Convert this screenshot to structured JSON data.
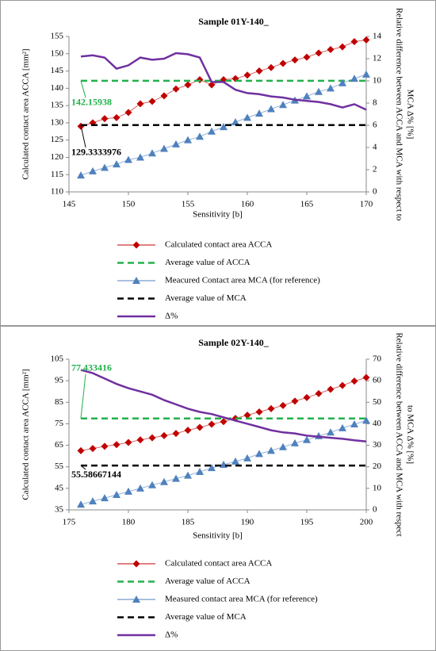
{
  "chart_data": [
    {
      "type": "line",
      "title": "Sample 01Y-140_",
      "xlabel": "Sensitivity [b]",
      "ylabel": "Calculated contact area ACCA [mm²]",
      "y2label": [
        "Relative difference between ACCA and MCA with respect to",
        "MCA Δ% [%]"
      ],
      "x": [
        146,
        147,
        148,
        149,
        150,
        151,
        152,
        153,
        154,
        155,
        156,
        157,
        158,
        159,
        160,
        161,
        162,
        163,
        164,
        165,
        166,
        167,
        168,
        169,
        170
      ],
      "xlim": [
        145,
        170
      ],
      "xticks": [
        145,
        150,
        155,
        160,
        165,
        170
      ],
      "ylim": [
        110,
        155
      ],
      "yticks": [
        110,
        115,
        120,
        125,
        130,
        135,
        140,
        145,
        150,
        155
      ],
      "y2lim": [
        0,
        14
      ],
      "y2ticks": [
        0,
        2,
        4,
        6,
        8,
        10,
        12,
        14
      ],
      "series": [
        {
          "name": "Calculated contact area ACCA",
          "color": "#c00000",
          "marker": "diamond",
          "dash": false,
          "values": [
            129,
            130,
            131.2,
            131.5,
            133,
            135.5,
            136.2,
            137.8,
            139.8,
            141,
            142.5,
            141,
            142.5,
            142.8,
            143.8,
            145,
            146,
            147.2,
            148.2,
            149,
            150.2,
            151.2,
            152,
            153.5,
            154
          ]
        },
        {
          "name": "Average value of ACCA",
          "color": "#22b14c",
          "dash": true,
          "values": [
            142.15938,
            142.15938,
            142.15938,
            142.15938,
            142.15938,
            142.15938,
            142.15938,
            142.15938,
            142.15938,
            142.15938,
            142.15938,
            142.15938,
            142.15938,
            142.15938,
            142.15938,
            142.15938,
            142.15938,
            142.15938,
            142.15938,
            142.15938,
            142.15938,
            142.15938,
            142.15938,
            142.15938,
            142.15938
          ]
        },
        {
          "name": "Meacured Contact area MCA (for reference)",
          "color": "#4f81bd",
          "marker": "triangle",
          "dash": false,
          "values": [
            114.8,
            116,
            117,
            118,
            119.3,
            120,
            121.2,
            122.5,
            123.8,
            125,
            126,
            127.5,
            128.8,
            130.2,
            131.5,
            132.7,
            134,
            135.2,
            136.5,
            137.7,
            139,
            140,
            141.5,
            142.8,
            144
          ]
        },
        {
          "name": "Average value of MCA",
          "color": "#000000",
          "dash": true,
          "values": [
            129.3333976,
            129.3333976,
            129.3333976,
            129.3333976,
            129.3333976,
            129.3333976,
            129.3333976,
            129.3333976,
            129.3333976,
            129.3333976,
            129.3333976,
            129.3333976,
            129.3333976,
            129.3333976,
            129.3333976,
            129.3333976,
            129.3333976,
            129.3333976,
            129.3333976,
            129.3333976,
            129.3333976,
            129.3333976,
            129.3333976,
            129.3333976,
            129.3333976
          ]
        },
        {
          "name": "Δ%",
          "color": "#7030a0",
          "dash": false,
          "axis": "y2",
          "values": [
            12.2,
            12.3,
            12.1,
            11.1,
            11.4,
            12.1,
            11.9,
            12,
            12.5,
            12.4,
            12.1,
            9.9,
            9.9,
            9.2,
            8.9,
            8.8,
            8.6,
            8.5,
            8.3,
            8.2,
            8.1,
            7.9,
            7.6,
            7.9,
            7.4
          ]
        }
      ],
      "annotations": [
        {
          "label": "142.15938",
          "value": 142.15938,
          "x": 146,
          "color": "#22b14c"
        },
        {
          "label": "129.3333976",
          "value": 129.3333976,
          "x": 146,
          "color": "#000000"
        }
      ]
    },
    {
      "type": "line",
      "title": "Sample 02Y-140_",
      "xlabel": "Sensitivity [b]",
      "ylabel": "Calculated contact area ACCA [mm²]",
      "y2label": [
        "Relative difference between ACCA and MCA with respect",
        "to MCA Δ% [%]"
      ],
      "x": [
        176,
        177,
        178,
        179,
        180,
        181,
        182,
        183,
        184,
        185,
        186,
        187,
        188,
        189,
        190,
        191,
        192,
        193,
        194,
        195,
        196,
        197,
        198,
        199,
        200
      ],
      "xlim": [
        175,
        200
      ],
      "xticks": [
        175,
        180,
        185,
        190,
        195,
        200
      ],
      "ylim": [
        35,
        105
      ],
      "yticks": [
        35,
        45,
        55,
        65,
        75,
        85,
        95,
        105
      ],
      "y2lim": [
        0,
        70
      ],
      "y2ticks": [
        0,
        10,
        20,
        30,
        40,
        50,
        60,
        70
      ],
      "series": [
        {
          "name": "Calculated contact area ACCA",
          "color": "#c00000",
          "marker": "diamond",
          "dash": false,
          "values": [
            62.5,
            63.5,
            64.5,
            65.3,
            66.3,
            67.5,
            68.5,
            69.5,
            70.5,
            72,
            73.3,
            74.8,
            76,
            77.5,
            79,
            80.5,
            82,
            83.5,
            85.5,
            87.2,
            89,
            91,
            92.8,
            94.8,
            96.5
          ]
        },
        {
          "name": "Average value of ACCA",
          "color": "#22b14c",
          "dash": true,
          "values": [
            77.433416,
            77.433416,
            77.433416,
            77.433416,
            77.433416,
            77.433416,
            77.433416,
            77.433416,
            77.433416,
            77.433416,
            77.433416,
            77.433416,
            77.433416,
            77.433416,
            77.433416,
            77.433416,
            77.433416,
            77.433416,
            77.433416,
            77.433416,
            77.433416,
            77.433416,
            77.433416,
            77.433416,
            77.433416
          ]
        },
        {
          "name": "Measured contact area MCA (for reference)",
          "color": "#4f81bd",
          "marker": "triangle",
          "dash": false,
          "values": [
            37.5,
            39,
            40.5,
            42,
            43.5,
            45,
            46.5,
            48,
            49.5,
            51,
            52.7,
            54.5,
            56,
            57.5,
            59,
            61,
            62.5,
            64.2,
            66,
            67.5,
            69.3,
            71,
            73,
            74.8,
            76.5
          ]
        },
        {
          "name": "Average value of MCA",
          "color": "#000000",
          "dash": true,
          "values": [
            55.58667144,
            55.58667144,
            55.58667144,
            55.58667144,
            55.58667144,
            55.58667144,
            55.58667144,
            55.58667144,
            55.58667144,
            55.58667144,
            55.58667144,
            55.58667144,
            55.58667144,
            55.58667144,
            55.58667144,
            55.58667144,
            55.58667144,
            55.58667144,
            55.58667144,
            55.58667144,
            55.58667144,
            55.58667144,
            55.58667144,
            55.58667144,
            55.58667144
          ]
        },
        {
          "name": "Δ%",
          "color": "#7030a0",
          "dash": false,
          "axis": "y2",
          "values": [
            65,
            63.5,
            61,
            58.5,
            56.5,
            55,
            53.5,
            51,
            49,
            47,
            45.5,
            44.5,
            43,
            41.5,
            40,
            38.5,
            37,
            36,
            35.5,
            34.5,
            34,
            33.5,
            33,
            32.3,
            31.8
          ]
        }
      ],
      "annotations": [
        {
          "label": "77.433416",
          "value": 77.433416,
          "x": 176,
          "color": "#22b14c"
        },
        {
          "label": "55.58667144",
          "value": 55.58667144,
          "x": 176,
          "color": "#000000"
        }
      ]
    }
  ]
}
